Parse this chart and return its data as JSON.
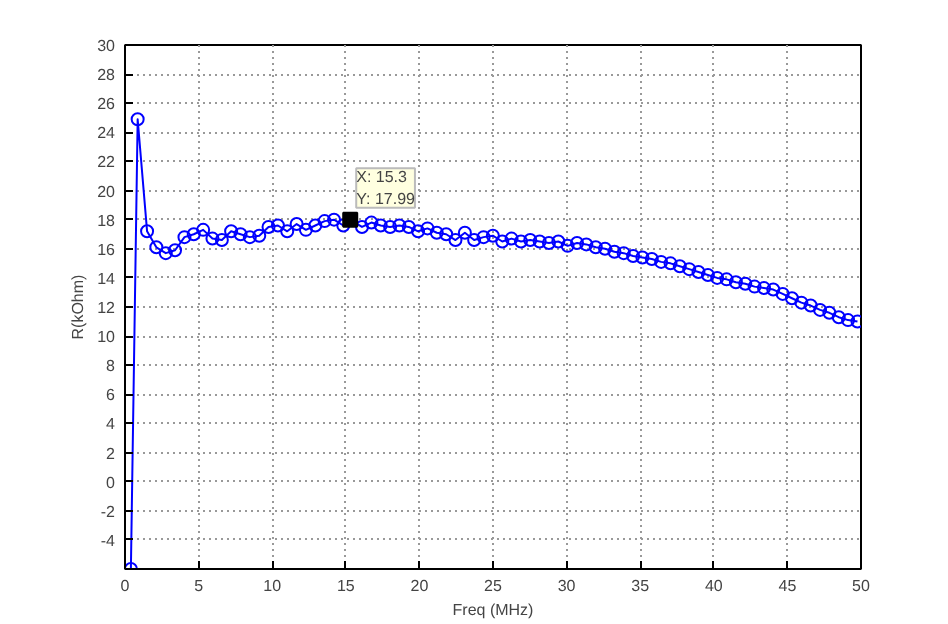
{
  "chart_data": {
    "type": "line",
    "xlabel": "Freq (MHz)",
    "ylabel": "R(kOhm)",
    "xlim": [
      0,
      50
    ],
    "ylim": [
      -6,
      30
    ],
    "xticks": [
      0,
      5,
      10,
      15,
      20,
      25,
      30,
      35,
      40,
      45,
      50
    ],
    "yticks": [
      -4,
      -2,
      0,
      2,
      4,
      6,
      8,
      10,
      12,
      14,
      16,
      18,
      20,
      22,
      24,
      26,
      28,
      30
    ],
    "grid": true,
    "marker": "circle",
    "line_style": "solid",
    "series": [
      {
        "color": "#0000ff",
        "x": [
          0.4,
          0.86,
          1.5,
          2.13,
          2.77,
          3.4,
          4.04,
          4.67,
          5.31,
          5.94,
          6.58,
          7.21,
          7.85,
          8.48,
          9.12,
          9.75,
          10.39,
          11.02,
          11.66,
          12.29,
          12.93,
          13.56,
          14.2,
          14.83,
          15.3,
          16.1,
          16.74,
          17.37,
          18.01,
          18.64,
          19.28,
          19.91,
          20.55,
          21.18,
          21.82,
          22.45,
          23.09,
          23.72,
          24.36,
          24.99,
          25.63,
          26.26,
          26.9,
          27.53,
          28.17,
          28.8,
          29.44,
          30.07,
          30.71,
          31.34,
          31.98,
          32.61,
          33.25,
          33.88,
          34.52,
          35.15,
          35.79,
          36.42,
          37.06,
          37.69,
          38.33,
          38.96,
          39.6,
          40.23,
          40.87,
          41.5,
          42.14,
          42.77,
          43.41,
          44.04,
          44.68,
          45.31,
          45.95,
          46.58,
          47.22,
          47.85,
          48.49,
          49.12,
          49.76
        ],
        "values": [
          -6,
          24.9,
          17.2,
          16.1,
          15.7,
          15.9,
          16.8,
          17.0,
          17.3,
          16.7,
          16.6,
          17.2,
          17.0,
          16.8,
          16.9,
          17.5,
          17.6,
          17.2,
          17.7,
          17.3,
          17.6,
          17.9,
          18.0,
          17.6,
          17.99,
          17.5,
          17.8,
          17.6,
          17.5,
          17.6,
          17.5,
          17.2,
          17.4,
          17.1,
          17.0,
          16.6,
          17.1,
          16.6,
          16.8,
          16.9,
          16.5,
          16.7,
          16.5,
          16.6,
          16.5,
          16.4,
          16.5,
          16.2,
          16.4,
          16.3,
          16.1,
          16.0,
          15.8,
          15.7,
          15.5,
          15.4,
          15.3,
          15.1,
          15.0,
          14.8,
          14.6,
          14.4,
          14.2,
          14.0,
          13.9,
          13.7,
          13.6,
          13.4,
          13.3,
          13.2,
          12.9,
          12.6,
          12.3,
          12.1,
          11.8,
          11.6,
          11.3,
          11.1,
          11.0
        ]
      }
    ],
    "annotations": [
      {
        "text": "X: 15.3\nY: 17.99",
        "x": 15.3,
        "y": 17.99
      }
    ]
  }
}
